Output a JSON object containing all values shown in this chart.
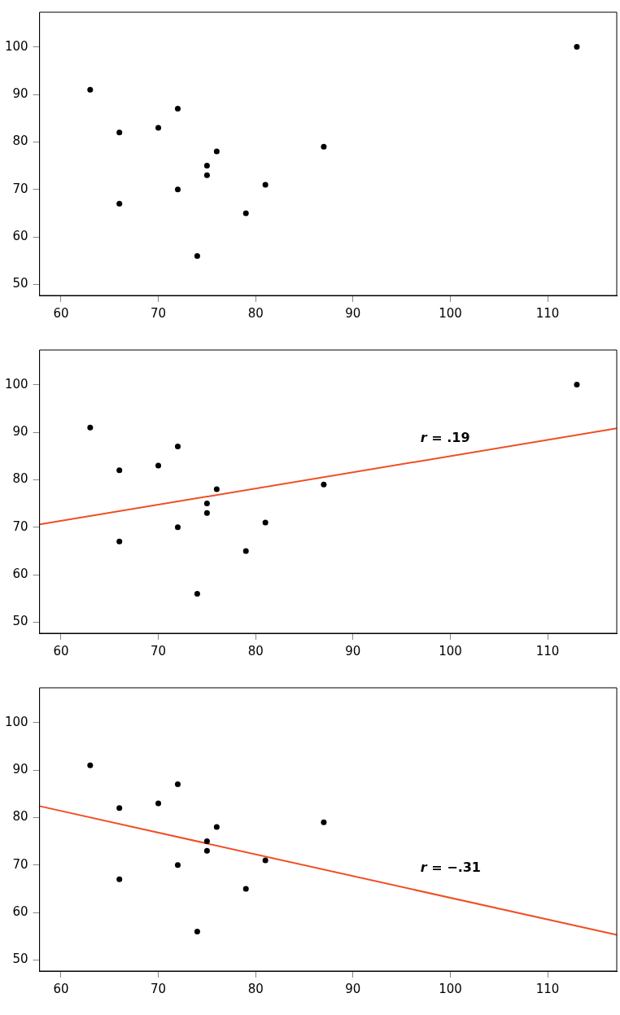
{
  "chart_data": [
    {
      "type": "scatter",
      "xlim": [
        57.8,
        117.1
      ],
      "ylim": [
        47.7,
        107.3
      ],
      "xticks": [
        60,
        70,
        80,
        90,
        100,
        110
      ],
      "yticks": [
        50,
        60,
        70,
        80,
        90,
        100
      ],
      "grid": false,
      "legend": false,
      "marker": "circle",
      "series": [
        {
          "type": "scatter",
          "color": "#000000",
          "x": [
            63,
            66,
            66,
            70,
            72,
            72,
            74,
            75,
            75,
            76,
            79,
            81,
            87,
            113
          ],
          "values": [
            91,
            82,
            67,
            83,
            87,
            70,
            56,
            75,
            73,
            78,
            65,
            71,
            79,
            100
          ]
        }
      ]
    },
    {
      "type": "scatter",
      "xlim": [
        57.8,
        117.1
      ],
      "ylim": [
        47.7,
        107.3
      ],
      "xticks": [
        60,
        70,
        80,
        90,
        100,
        110
      ],
      "yticks": [
        50,
        60,
        70,
        80,
        90,
        100
      ],
      "grid": false,
      "legend": false,
      "marker": "circle",
      "annotations": [
        "r = .19"
      ],
      "series": [
        {
          "type": "scatter",
          "color": "#000000",
          "x": [
            63,
            66,
            66,
            70,
            72,
            72,
            74,
            75,
            75,
            76,
            79,
            81,
            87,
            113
          ],
          "values": [
            91,
            82,
            67,
            83,
            87,
            70,
            56,
            75,
            73,
            78,
            65,
            71,
            79,
            100
          ]
        },
        {
          "type": "line",
          "color": "#f04e23",
          "marker": "none",
          "x": [
            57.8,
            117.1
          ],
          "values": [
            70.6,
            90.8
          ]
        }
      ]
    },
    {
      "type": "scatter",
      "xlim": [
        57.8,
        117.1
      ],
      "ylim": [
        47.7,
        107.3
      ],
      "xticks": [
        60,
        70,
        80,
        90,
        100,
        110
      ],
      "yticks": [
        50,
        60,
        70,
        80,
        90,
        100
      ],
      "grid": false,
      "legend": false,
      "marker": "circle",
      "annotations": [
        "r = −.31"
      ],
      "series": [
        {
          "type": "scatter",
          "color": "#000000",
          "x": [
            63,
            66,
            66,
            70,
            72,
            72,
            74,
            75,
            75,
            76,
            79,
            81,
            87
          ],
          "values": [
            91,
            82,
            67,
            83,
            87,
            70,
            56,
            75,
            73,
            78,
            65,
            71,
            79
          ]
        },
        {
          "type": "line",
          "color": "#f04e23",
          "marker": "none",
          "x": [
            57.8,
            117.1
          ],
          "values": [
            82.4,
            55.3
          ]
        }
      ]
    }
  ]
}
